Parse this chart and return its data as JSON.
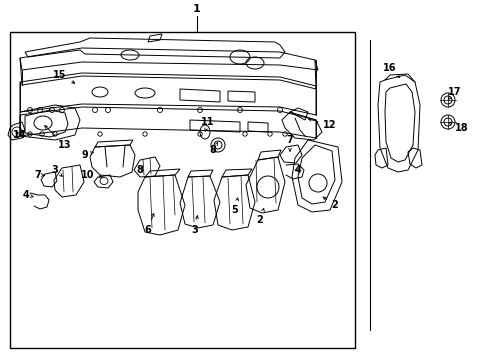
{
  "bg_color": "#ffffff",
  "border_color": "#000000",
  "line_color": "#000000",
  "text_color": "#000000",
  "figsize": [
    4.89,
    3.6
  ],
  "dpi": 100
}
